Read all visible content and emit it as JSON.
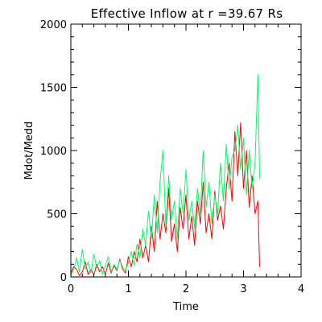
{
  "chart_data": {
    "type": "line",
    "title": "Effective Inflow at r =39.67  Rs",
    "xlabel": "Time",
    "ylabel": "Mdot/Medd",
    "xlim": [
      0,
      4
    ],
    "ylim": [
      0,
      2000
    ],
    "x_ticks": [
      "0",
      "1",
      "2",
      "3",
      "4"
    ],
    "y_ticks": [
      "0",
      "500",
      "1000",
      "1500",
      "2000"
    ],
    "grid": false,
    "legend": "none",
    "series": [
      {
        "color": "#ff0000",
        "x": [
          0.0,
          0.05,
          0.1,
          0.15,
          0.2,
          0.25,
          0.3,
          0.35,
          0.4,
          0.45,
          0.5,
          0.55,
          0.6,
          0.65,
          0.7,
          0.75,
          0.8,
          0.85,
          0.9,
          0.95,
          1.0,
          1.05,
          1.1,
          1.15,
          1.2,
          1.25,
          1.3,
          1.35,
          1.4,
          1.45,
          1.5,
          1.55,
          1.6,
          1.65,
          1.7,
          1.75,
          1.8,
          1.85,
          1.9,
          1.95,
          2.0,
          2.05,
          2.1,
          2.15,
          2.2,
          2.25,
          2.3,
          2.35,
          2.4,
          2.45,
          2.5,
          2.55,
          2.6,
          2.65,
          2.7,
          2.75,
          2.8,
          2.85,
          2.9,
          2.95,
          3.0,
          3.05,
          3.1,
          3.15,
          3.2,
          3.25,
          3.28
        ],
        "values": [
          30,
          80,
          60,
          10,
          40,
          120,
          20,
          60,
          15,
          100,
          40,
          80,
          20,
          110,
          30,
          90,
          50,
          140,
          60,
          30,
          160,
          80,
          200,
          120,
          300,
          150,
          250,
          120,
          400,
          200,
          600,
          300,
          500,
          350,
          700,
          280,
          420,
          200,
          550,
          380,
          650,
          300,
          480,
          250,
          600,
          420,
          750,
          350,
          500,
          300,
          680,
          450,
          560,
          380,
          700,
          900,
          600,
          1150,
          800,
          1220,
          700,
          1000,
          550,
          800,
          500,
          600,
          80
        ]
      },
      {
        "color": "#00ff66",
        "x": [
          0.0,
          0.05,
          0.1,
          0.15,
          0.2,
          0.25,
          0.3,
          0.35,
          0.4,
          0.45,
          0.5,
          0.55,
          0.6,
          0.65,
          0.7,
          0.75,
          0.8,
          0.85,
          0.9,
          0.95,
          1.0,
          1.05,
          1.1,
          1.15,
          1.2,
          1.25,
          1.3,
          1.35,
          1.4,
          1.45,
          1.5,
          1.55,
          1.6,
          1.65,
          1.7,
          1.75,
          1.8,
          1.85,
          1.9,
          1.95,
          2.0,
          2.05,
          2.1,
          2.15,
          2.2,
          2.25,
          2.3,
          2.35,
          2.4,
          2.45,
          2.5,
          2.55,
          2.6,
          2.65,
          2.7,
          2.75,
          2.8,
          2.85,
          2.9,
          2.95,
          3.0,
          3.05,
          3.1,
          3.15,
          3.2,
          3.25,
          3.28
        ],
        "values": [
          10,
          60,
          150,
          40,
          220,
          60,
          120,
          30,
          180,
          70,
          130,
          20,
          90,
          160,
          40,
          100,
          60,
          130,
          80,
          50,
          110,
          200,
          90,
          260,
          150,
          380,
          250,
          520,
          300,
          650,
          350,
          750,
          1000,
          400,
          800,
          450,
          600,
          300,
          700,
          500,
          850,
          450,
          600,
          380,
          700,
          500,
          1000,
          550,
          750,
          420,
          650,
          500,
          900,
          600,
          1050,
          700,
          950,
          1000,
          1200,
          850,
          1100,
          650,
          1000,
          700,
          900,
          1600,
          780
        ]
      }
    ]
  }
}
